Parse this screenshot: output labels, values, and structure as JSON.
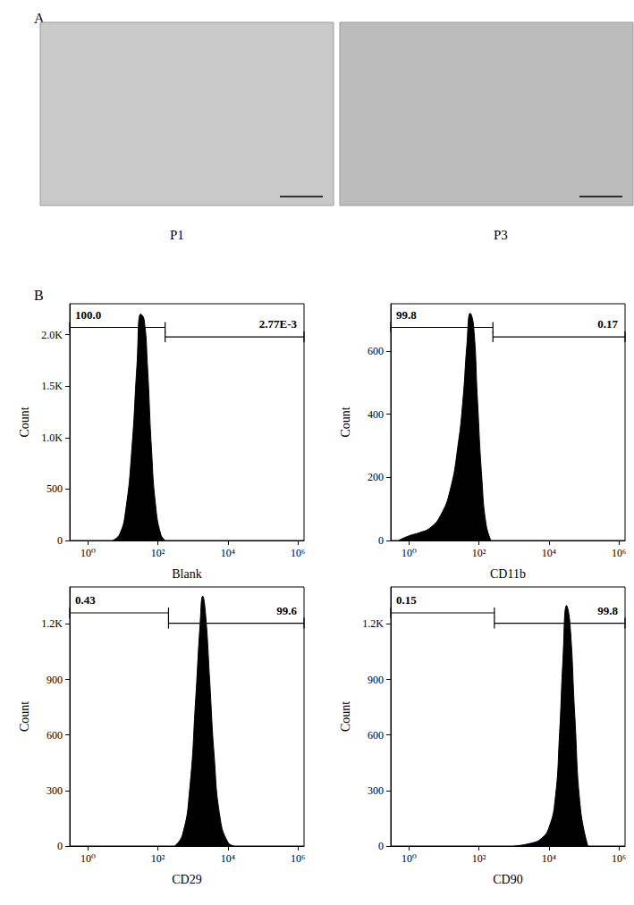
{
  "figure": {
    "panels": [
      {
        "label": "A",
        "images": [
          {
            "caption": "P1"
          },
          {
            "caption": "P3"
          }
        ]
      },
      {
        "label": "B"
      }
    ]
  },
  "chart_data": [
    {
      "type": "area",
      "x_label": "Blank",
      "y_label": "Count",
      "color": "#000000",
      "log": "x",
      "grid": false,
      "x": [
        5,
        8,
        12,
        18,
        25,
        32,
        40,
        50,
        65,
        85,
        120,
        160
      ],
      "values": [
        0,
        60,
        300,
        900,
        1700,
        2200,
        2150,
        1700,
        900,
        350,
        60,
        0
      ],
      "xlim": [
        0.3,
        1500000
      ],
      "xticks": [
        {
          "value": 1,
          "label": "10⁰"
        },
        {
          "value": 100,
          "label": "10²"
        },
        {
          "value": 10000,
          "label": "10⁴"
        },
        {
          "value": 1000000,
          "label": "10⁶"
        }
      ],
      "ylim": [
        0,
        2300
      ],
      "yticks": [
        0,
        500,
        {
          "value": 1000,
          "label": "1.0K"
        },
        {
          "value": 1500,
          "label": "1.5K"
        },
        {
          "value": 2000,
          "label": "2.0K"
        }
      ],
      "gates": [
        {
          "range": [
            0.3,
            160
          ],
          "value": 100.0,
          "label": "100.0"
        },
        {
          "range": [
            160,
            1500000
          ],
          "value": 0.00277,
          "label": "2.77E-3"
        }
      ]
    },
    {
      "type": "area",
      "x_label": "CD11b",
      "y_label": "Count",
      "color": "#000000",
      "log": "x",
      "grid": false,
      "x": [
        0.5,
        1,
        2,
        4,
        8,
        15,
        25,
        35,
        45,
        56,
        70,
        90,
        120,
        160,
        220
      ],
      "values": [
        0,
        15,
        25,
        40,
        80,
        160,
        300,
        450,
        620,
        720,
        680,
        450,
        200,
        50,
        0
      ],
      "xlim": [
        0.3,
        1500000
      ],
      "xticks": [
        {
          "value": 1,
          "label": "10⁰"
        },
        {
          "value": 100,
          "label": "10²"
        },
        {
          "value": 10000,
          "label": "10⁴"
        },
        {
          "value": 1000000,
          "label": "10⁶"
        }
      ],
      "ylim": [
        0,
        750
      ],
      "yticks": [
        0,
        200,
        400,
        600
      ],
      "gates": [
        {
          "range": [
            0.3,
            250
          ],
          "value": 99.8
        },
        {
          "range": [
            250,
            1500000
          ],
          "value": 0.17
        }
      ]
    },
    {
      "type": "area",
      "x_label": "CD29",
      "y_label": "Count",
      "color": "#000000",
      "log": "x",
      "grid": false,
      "x": [
        300,
        500,
        800,
        1200,
        1600,
        1900,
        2300,
        3000,
        4000,
        6000,
        10000,
        15000
      ],
      "values": [
        0,
        60,
        300,
        800,
        1200,
        1350,
        1250,
        900,
        500,
        150,
        20,
        0
      ],
      "xlim": [
        0.3,
        1500000
      ],
      "xticks": [
        {
          "value": 1,
          "label": "10⁰"
        },
        {
          "value": 100,
          "label": "10²"
        },
        {
          "value": 10000,
          "label": "10⁴"
        },
        {
          "value": 1000000,
          "label": "10⁶"
        }
      ],
      "ylim": [
        0,
        1400
      ],
      "yticks": [
        0,
        300,
        600,
        900,
        {
          "value": 1200,
          "label": "1.2K"
        }
      ],
      "gates": [
        {
          "range": [
            0.3,
            200
          ],
          "value": 0.43
        },
        {
          "range": [
            200,
            1500000
          ],
          "value": 99.6
        }
      ]
    },
    {
      "type": "area",
      "x_label": "CD90",
      "y_label": "Count",
      "color": "#000000",
      "log": "x",
      "grid": false,
      "x": [
        1000,
        3000,
        6000,
        10000,
        15000,
        20000,
        25000,
        32000,
        40000,
        55000,
        80000,
        130000
      ],
      "values": [
        0,
        15,
        40,
        100,
        250,
        600,
        1000,
        1300,
        1200,
        700,
        200,
        0
      ],
      "xlim": [
        0.3,
        1500000
      ],
      "xticks": [
        {
          "value": 1,
          "label": "10⁰"
        },
        {
          "value": 100,
          "label": "10²"
        },
        {
          "value": 10000,
          "label": "10⁴"
        },
        {
          "value": 1000000,
          "label": "10⁶"
        }
      ],
      "ylim": [
        0,
        1400
      ],
      "yticks": [
        0,
        300,
        600,
        900,
        {
          "value": 1200,
          "label": "1.2K"
        }
      ],
      "gates": [
        {
          "range": [
            0.3,
            275
          ],
          "value": 0.15
        },
        {
          "range": [
            275,
            1500000
          ],
          "value": 99.8
        }
      ]
    }
  ]
}
